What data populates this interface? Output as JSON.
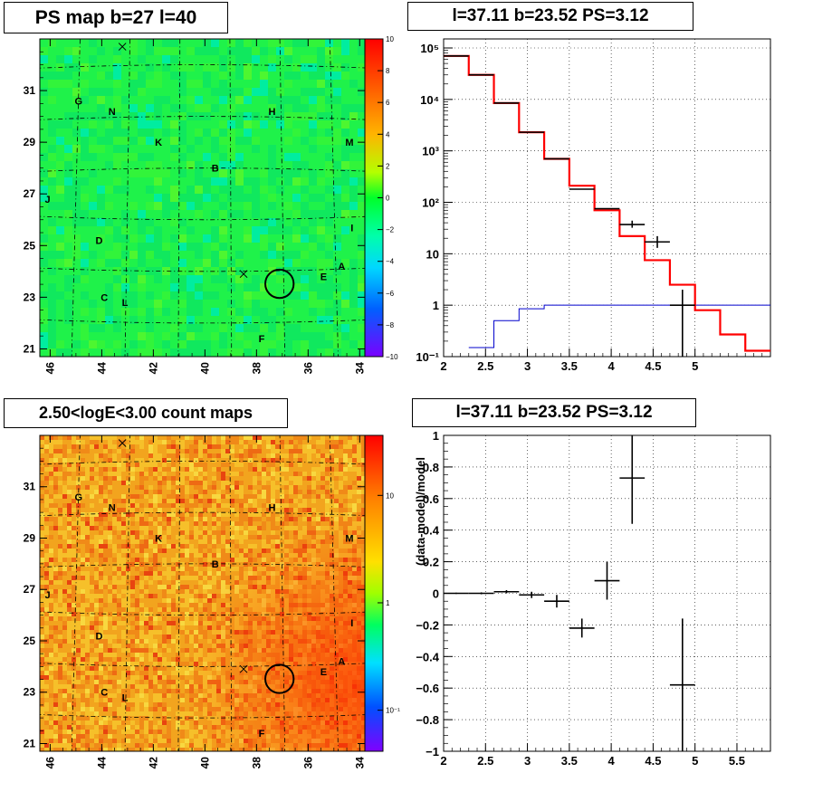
{
  "panels": {
    "map_top_title": "PS map b=27 l=40",
    "map_bottom_title": "2.50<logE<3.00 count maps",
    "spec_title": "l=37.11 b=23.52 PS=3.12",
    "resid_title": "l=37.11 b=23.52 PS=3.12",
    "resid_ylabel": "(data-model)/model"
  },
  "colors": {
    "model_line": "#ff0000",
    "background_line": "#0000cc",
    "data_marks": "#000000",
    "grid": "#000000"
  },
  "maps": {
    "x_ticks": [
      "46",
      "44",
      "42",
      "40",
      "38",
      "36",
      "34"
    ],
    "y_ticks": [
      "31",
      "29",
      "27",
      "25",
      "23",
      "21"
    ],
    "labels": [
      {
        "t": "G",
        "l": 44.9,
        "b": 30.6
      },
      {
        "t": "N",
        "l": 43.6,
        "b": 30.2
      },
      {
        "t": "H",
        "l": 37.4,
        "b": 30.2
      },
      {
        "t": "K",
        "l": 41.8,
        "b": 29.0
      },
      {
        "t": "M",
        "l": 34.4,
        "b": 29.0
      },
      {
        "t": "B",
        "l": 39.6,
        "b": 28.0
      },
      {
        "t": "J",
        "l": 46.1,
        "b": 26.8
      },
      {
        "t": "I",
        "l": 34.3,
        "b": 25.7
      },
      {
        "t": "D",
        "l": 44.1,
        "b": 25.2
      },
      {
        "t": "A",
        "l": 34.7,
        "b": 24.2
      },
      {
        "t": "E",
        "l": 35.4,
        "b": 23.8
      },
      {
        "t": "C",
        "l": 43.9,
        "b": 23.0
      },
      {
        "t": "L",
        "l": 43.1,
        "b": 22.8
      },
      {
        "t": "F",
        "l": 37.8,
        "b": 21.4
      }
    ],
    "crosses": [
      {
        "l": 43.2,
        "b": 32.7
      },
      {
        "l": 38.5,
        "b": 23.9
      }
    ],
    "circle": {
      "l": 37.11,
      "b": 23.52,
      "r_deg": 0.55
    },
    "ps_colorbar_ticks": [
      "10",
      "8",
      "6",
      "4",
      "2",
      "0",
      "−2",
      "−4",
      "−6",
      "−8",
      "−10"
    ],
    "count_colorbar_ticks": [
      "10",
      "1",
      "10⁻¹"
    ]
  },
  "chart_data": [
    {
      "type": "line",
      "name": "spectrum",
      "title": "l=37.11 b=23.52 PS=3.12",
      "xlabel": "",
      "ylabel": "",
      "xlim": [
        2,
        5.9
      ],
      "ylim": [
        0.1,
        150000
      ],
      "yscale": "log",
      "x_ticks": [
        "2",
        "2.5",
        "3",
        "3.5",
        "4",
        "4.5",
        "5"
      ],
      "y_ticks": [
        "10⁻¹",
        "1",
        "10",
        "10²",
        "10³",
        "10⁴",
        "10⁵"
      ],
      "grid": true,
      "model": {
        "edges": [
          2.0,
          2.3,
          2.6,
          2.9,
          3.2,
          3.5,
          3.8,
          4.1,
          4.4,
          4.7,
          5.0,
          5.3,
          5.6,
          5.9
        ],
        "values": [
          70000,
          30000,
          8500,
          2300,
          700,
          210,
          70,
          22,
          7.5,
          2.5,
          0.8,
          0.27,
          0.13
        ]
      },
      "background": {
        "edges": [
          2.3,
          2.6,
          2.9,
          3.2,
          5.9
        ],
        "values": [
          0.15,
          0.5,
          0.85,
          1.0
        ]
      },
      "data": [
        {
          "x": 2.15,
          "y": 70000,
          "xerr": 0.15
        },
        {
          "x": 2.45,
          "y": 30000,
          "xerr": 0.15
        },
        {
          "x": 2.75,
          "y": 8500,
          "xerr": 0.15
        },
        {
          "x": 3.05,
          "y": 2300,
          "xerr": 0.15
        },
        {
          "x": 3.35,
          "y": 700,
          "xerr": 0.15
        },
        {
          "x": 3.65,
          "y": 180,
          "xerr": 0.15
        },
        {
          "x": 3.95,
          "y": 75,
          "xerr": 0.15
        },
        {
          "x": 4.25,
          "y": 37,
          "xerr": 0.15,
          "ylo": 32,
          "yhi": 44
        },
        {
          "x": 4.55,
          "y": 17,
          "xerr": 0.15,
          "ylo": 13,
          "yhi": 22
        },
        {
          "x": 4.85,
          "y": 1.0,
          "xerr": 0.15,
          "ylo": 0.08,
          "yhi": 2.0
        }
      ]
    },
    {
      "type": "scatter",
      "name": "residuals",
      "title": "l=37.11 b=23.52 PS=3.12",
      "xlabel": "",
      "ylabel": "(data-model)/model",
      "xlim": [
        2,
        5.9
      ],
      "ylim": [
        -1,
        1
      ],
      "x_ticks": [
        "2",
        "2.5",
        "3",
        "3.5",
        "4",
        "4.5",
        "5",
        "5.5"
      ],
      "y_ticks": [
        "1",
        "0.8",
        "0.6",
        "0.4",
        "0.2",
        "0",
        "−0.2",
        "−0.4",
        "−0.6",
        "−0.8",
        "−1"
      ],
      "grid": true,
      "points": [
        {
          "x": 2.15,
          "y": 0.0,
          "xerr": 0.15,
          "yerr": 0.004
        },
        {
          "x": 2.45,
          "y": 0.0,
          "xerr": 0.15,
          "yerr": 0.006
        },
        {
          "x": 2.75,
          "y": 0.01,
          "xerr": 0.15,
          "yerr": 0.01
        },
        {
          "x": 3.05,
          "y": -0.01,
          "xerr": 0.15,
          "yerr": 0.02
        },
        {
          "x": 3.35,
          "y": -0.05,
          "xerr": 0.15,
          "yerr": 0.04
        },
        {
          "x": 3.65,
          "y": -0.22,
          "xerr": 0.15,
          "yerr": 0.06
        },
        {
          "x": 3.95,
          "y": 0.08,
          "xerr": 0.15,
          "yerr": 0.12
        },
        {
          "x": 4.25,
          "y": 0.73,
          "xerr": 0.15,
          "yerr": 0.29
        },
        {
          "x": 4.85,
          "y": -0.58,
          "xerr": 0.15,
          "yerr": 0.42
        }
      ]
    }
  ]
}
